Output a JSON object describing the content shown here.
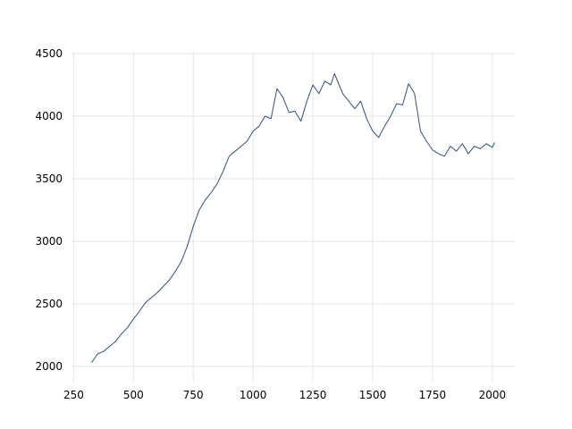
{
  "chart_data": {
    "type": "line",
    "x": [
      325,
      350,
      375,
      400,
      425,
      450,
      475,
      500,
      525,
      550,
      575,
      600,
      625,
      650,
      675,
      700,
      725,
      750,
      775,
      800,
      825,
      850,
      875,
      900,
      925,
      950,
      975,
      1000,
      1025,
      1050,
      1075,
      1100,
      1125,
      1150,
      1175,
      1200,
      1225,
      1250,
      1275,
      1300,
      1325,
      1340,
      1375,
      1400,
      1425,
      1450,
      1475,
      1500,
      1525,
      1550,
      1575,
      1600,
      1625,
      1650,
      1675,
      1700,
      1725,
      1750,
      1775,
      1800,
      1825,
      1850,
      1875,
      1900,
      1925,
      1950,
      1975,
      2000,
      2010
    ],
    "series": [
      {
        "color": "#34507a",
        "values": [
          2030,
          2100,
          2120,
          2160,
          2200,
          2260,
          2310,
          2380,
          2440,
          2510,
          2550,
          2590,
          2640,
          2690,
          2760,
          2840,
          2960,
          3120,
          3250,
          3330,
          3390,
          3460,
          3560,
          3680,
          3720,
          3760,
          3800,
          3880,
          3920,
          4000,
          3980,
          4220,
          4150,
          4030,
          4040,
          3960,
          4120,
          4250,
          4180,
          4280,
          4250,
          4340,
          4180,
          4120,
          4060,
          4120,
          3980,
          3880,
          3830,
          3920,
          4000,
          4100,
          4090,
          4260,
          4180,
          3880,
          3800,
          3730,
          3700,
          3680,
          3760,
          3720,
          3780,
          3700,
          3760,
          3740,
          3780,
          3750,
          3790
        ]
      }
    ],
    "xlim": [
      241,
      2094
    ],
    "ylim": [
      1877,
      4517
    ],
    "xticks": [
      250,
      500,
      750,
      1000,
      1250,
      1500,
      1750,
      2000
    ],
    "yticks": [
      2000,
      2500,
      3000,
      3500,
      4000,
      4500
    ],
    "grid": true
  }
}
